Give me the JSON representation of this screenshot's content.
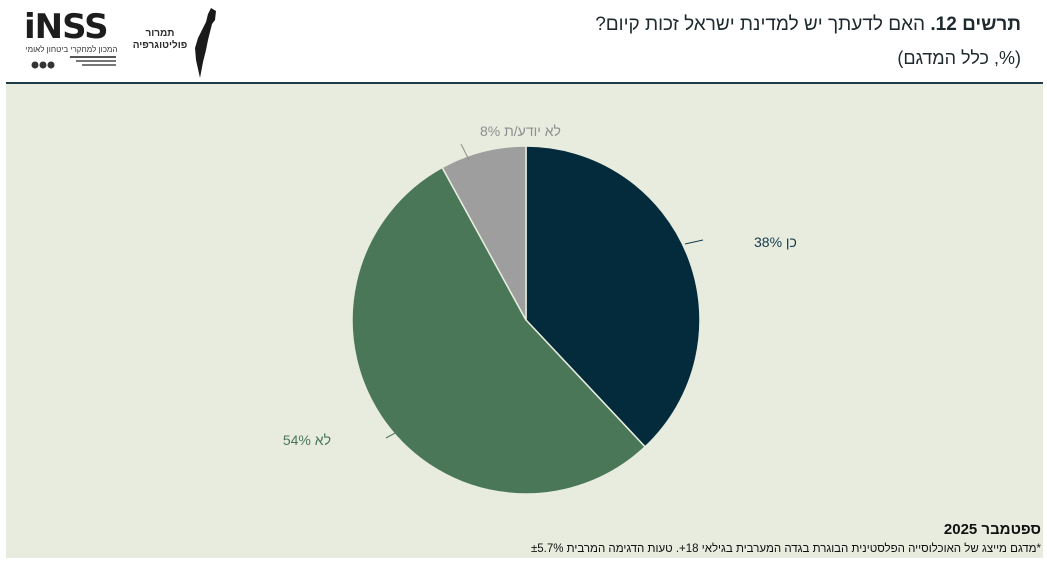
{
  "header": {
    "figure_label": "תרשים 12.",
    "question": "האם לדעתך יש למדינת ישראל זכות קיום?",
    "subtitle": "(%, כלל המדגם)"
  },
  "logos": {
    "inss_word": "iNSS",
    "inss_subtitle": "המכון למחקרי ביטחון לאומי",
    "tamrur_line1": "תמרור",
    "tamrur_line2": "פוליטוגרפיה"
  },
  "footer": {
    "date": "ספטמבר 2025",
    "note": "*מדגם מייצג של האוכלוסייה הפלסטינית הבוגרת בגדה המערבית בגילאי 18+. טעות הדגימה המרבית ±5.7%"
  },
  "colors": {
    "background_plot": "#e8ecdf",
    "yes": "#032b3b",
    "no": "#4a7757",
    "dont_know": "#9e9e9e",
    "divider": "#1f3b47"
  },
  "chart_data": {
    "type": "pie",
    "title": "האם לדעתך יש למדינת ישראל זכות קיום?",
    "unit": "%",
    "start_angle_deg": 0,
    "direction": "clockwise",
    "slices": [
      {
        "label": "כן",
        "value": 38,
        "display": "כן 38%",
        "color": "#032b3b",
        "label_color": "#143a49"
      },
      {
        "label": "לא",
        "value": 54,
        "display": "לא 54%",
        "color": "#4a7757",
        "label_color": "#4a7757"
      },
      {
        "label": "לא יודע/ת",
        "value": 8,
        "display": "לא יודע/ת 8%",
        "color": "#9e9e9e",
        "label_color": "#8e8e8e"
      }
    ]
  }
}
